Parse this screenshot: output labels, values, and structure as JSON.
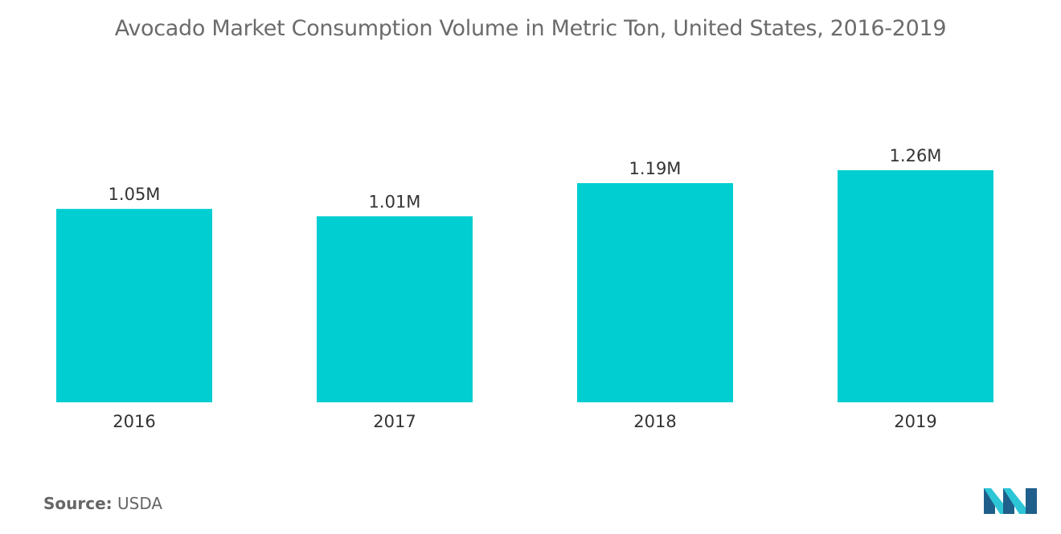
{
  "chart_data": {
    "type": "bar",
    "title": "Avocado Market Consumption Volume in Metric Ton, United States, 2016-2019",
    "categories": [
      "2016",
      "2017",
      "2018",
      "2019"
    ],
    "values": [
      1.05,
      1.01,
      1.19,
      1.26
    ],
    "data_labels": [
      "1.05M",
      "1.01M",
      "1.19M",
      "1.26M"
    ],
    "xlabel": "",
    "ylabel": "",
    "ylim": [
      0,
      1.26
    ],
    "grid": false,
    "bar_color": "#00ced1"
  },
  "source": {
    "label": "Source:",
    "value": "USDA"
  },
  "logo": {
    "icon": "mordor-intelligence-logo-icon",
    "colors": [
      "#1f5f8b",
      "#2cc6d6"
    ]
  }
}
